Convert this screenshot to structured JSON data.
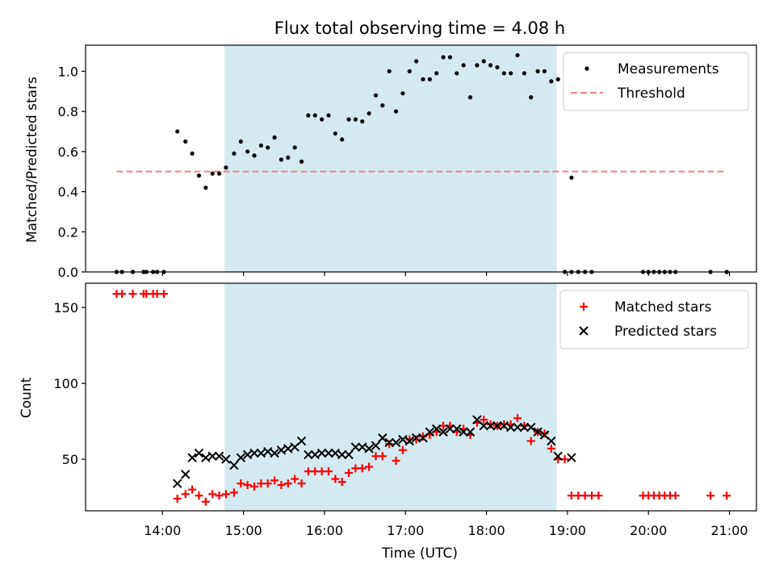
{
  "chart_data": [
    {
      "type": "scatter",
      "title": "Flux total observing time = 4.08 h",
      "xlabel": "",
      "ylabel": "Matched/Predicted stars",
      "xlim": [
        "13:03",
        "21:20"
      ],
      "ylim": [
        0,
        1.13
      ],
      "yticks": [
        0.0,
        0.2,
        0.4,
        0.6,
        0.8,
        1.0
      ],
      "ytick_labels": [
        "0.0",
        "0.2",
        "0.4",
        "0.6",
        "0.8",
        "1.0"
      ],
      "xticks": [
        "14:00",
        "15:00",
        "16:00",
        "17:00",
        "18:00",
        "19:00",
        "20:00",
        "21:00"
      ],
      "shaded_interval": {
        "start": "14:46",
        "end": "18:52",
        "color": "#d3eaf0"
      },
      "legend_position": "upper right",
      "threshold": {
        "name": "Threshold",
        "value": 0.5,
        "x_start": "13:26",
        "x_end": "20:58",
        "color": "#f08080",
        "style": "dashed"
      },
      "series": [
        {
          "name": "Measurements",
          "color": "#000000",
          "marker": "dot",
          "points": [
            [
              "13:26",
              0
            ],
            [
              "13:30",
              0
            ],
            [
              "13:38",
              0
            ],
            [
              "13:46",
              0
            ],
            [
              "13:48",
              0
            ],
            [
              "13:53",
              0
            ],
            [
              "13:56",
              0
            ],
            [
              "14:01",
              0
            ],
            [
              "14:11",
              0.7
            ],
            [
              "14:17",
              0.65
            ],
            [
              "14:22",
              0.59
            ],
            [
              "14:27",
              0.48
            ],
            [
              "14:32",
              0.42
            ],
            [
              "14:37",
              0.49
            ],
            [
              "14:42",
              0.49
            ],
            [
              "14:47",
              0.52
            ],
            [
              "14:53",
              0.59
            ],
            [
              "14:58",
              0.65
            ],
            [
              "15:03",
              0.6
            ],
            [
              "15:08",
              0.58
            ],
            [
              "15:13",
              0.63
            ],
            [
              "15:18",
              0.62
            ],
            [
              "15:23",
              0.67
            ],
            [
              "15:28",
              0.56
            ],
            [
              "15:33",
              0.57
            ],
            [
              "15:38",
              0.62
            ],
            [
              "15:43",
              0.55
            ],
            [
              "15:48",
              0.78
            ],
            [
              "15:53",
              0.78
            ],
            [
              "15:58",
              0.76
            ],
            [
              "16:03",
              0.78
            ],
            [
              "16:08",
              0.69
            ],
            [
              "16:13",
              0.66
            ],
            [
              "16:18",
              0.76
            ],
            [
              "16:23",
              0.76
            ],
            [
              "16:28",
              0.75
            ],
            [
              "16:33",
              0.79
            ],
            [
              "16:38",
              0.88
            ],
            [
              "16:43",
              0.83
            ],
            [
              "16:48",
              1.0
            ],
            [
              "16:53",
              0.8
            ],
            [
              "16:58",
              0.89
            ],
            [
              "17:03",
              1.0
            ],
            [
              "17:08",
              1.05
            ],
            [
              "17:13",
              0.96
            ],
            [
              "17:18",
              0.96
            ],
            [
              "17:23",
              0.99
            ],
            [
              "17:28",
              1.07
            ],
            [
              "17:33",
              1.07
            ],
            [
              "17:38",
              0.99
            ],
            [
              "17:43",
              1.03
            ],
            [
              "17:48",
              0.87
            ],
            [
              "17:53",
              1.03
            ],
            [
              "17:58",
              1.05
            ],
            [
              "18:03",
              1.03
            ],
            [
              "18:08",
              1.02
            ],
            [
              "18:13",
              0.99
            ],
            [
              "18:18",
              0.99
            ],
            [
              "18:23",
              1.08
            ],
            [
              "18:28",
              0.99
            ],
            [
              "18:33",
              0.87
            ],
            [
              "18:38",
              1.0
            ],
            [
              "18:43",
              1.0
            ],
            [
              "18:48",
              0.95
            ],
            [
              "18:53",
              0.96
            ],
            [
              "19:03",
              0.47
            ],
            [
              "18:58",
              0
            ],
            [
              "19:03",
              0
            ],
            [
              "19:08",
              0
            ],
            [
              "19:13",
              0
            ],
            [
              "19:18",
              0
            ],
            [
              "19:56",
              0
            ],
            [
              "20:00",
              0
            ],
            [
              "20:04",
              0
            ],
            [
              "20:08",
              0
            ],
            [
              "20:12",
              0
            ],
            [
              "20:16",
              0
            ],
            [
              "20:20",
              0
            ],
            [
              "20:46",
              0
            ],
            [
              "20:58",
              0
            ]
          ]
        }
      ]
    },
    {
      "type": "scatter",
      "title": "",
      "xlabel": "Time (UTC)",
      "ylabel": "Count",
      "xlim": [
        "13:03",
        "21:20"
      ],
      "ylim": [
        16,
        166
      ],
      "yticks": [
        50,
        100,
        150
      ],
      "ytick_labels": [
        "50",
        "100",
        "150"
      ],
      "xticks": [
        "14:00",
        "15:00",
        "16:00",
        "17:00",
        "18:00",
        "19:00",
        "20:00",
        "21:00"
      ],
      "xtick_labels": [
        "14:00",
        "15:00",
        "16:00",
        "17:00",
        "18:00",
        "19:00",
        "20:00",
        "21:00"
      ],
      "shaded_interval": {
        "start": "14:46",
        "end": "18:52",
        "color": "#d3eaf0"
      },
      "legend_position": "upper right",
      "series": [
        {
          "name": "Matched stars",
          "color": "#ff0000",
          "marker": "plus",
          "points": [
            [
              "13:26",
              159
            ],
            [
              "13:30",
              159
            ],
            [
              "13:38",
              159
            ],
            [
              "13:46",
              159
            ],
            [
              "13:48",
              159
            ],
            [
              "13:53",
              159
            ],
            [
              "13:56",
              159
            ],
            [
              "14:01",
              159
            ],
            [
              "14:11",
              24
            ],
            [
              "14:17",
              27
            ],
            [
              "14:22",
              30
            ],
            [
              "14:27",
              26
            ],
            [
              "14:32",
              22
            ],
            [
              "14:37",
              27
            ],
            [
              "14:42",
              26
            ],
            [
              "14:47",
              27
            ],
            [
              "14:53",
              28
            ],
            [
              "14:58",
              34
            ],
            [
              "15:03",
              33
            ],
            [
              "15:08",
              32
            ],
            [
              "15:13",
              34
            ],
            [
              "15:18",
              34
            ],
            [
              "15:23",
              36
            ],
            [
              "15:28",
              33
            ],
            [
              "15:33",
              34
            ],
            [
              "15:38",
              37
            ],
            [
              "15:43",
              34
            ],
            [
              "15:48",
              42
            ],
            [
              "15:53",
              42
            ],
            [
              "15:58",
              42
            ],
            [
              "16:03",
              42
            ],
            [
              "16:08",
              37
            ],
            [
              "16:13",
              35
            ],
            [
              "16:18",
              41
            ],
            [
              "16:23",
              44
            ],
            [
              "16:28",
              44
            ],
            [
              "16:33",
              45
            ],
            [
              "16:38",
              52
            ],
            [
              "16:43",
              52
            ],
            [
              "16:48",
              60
            ],
            [
              "16:53",
              49
            ],
            [
              "16:58",
              56
            ],
            [
              "17:03",
              63
            ],
            [
              "17:08",
              63
            ],
            [
              "17:13",
              65
            ],
            [
              "17:18",
              66
            ],
            [
              "17:23",
              68
            ],
            [
              "17:28",
              72
            ],
            [
              "17:33",
              72
            ],
            [
              "17:38",
              68
            ],
            [
              "17:43",
              70
            ],
            [
              "17:48",
              66
            ],
            [
              "17:53",
              74
            ],
            [
              "17:58",
              76
            ],
            [
              "18:03",
              73
            ],
            [
              "18:08",
              72
            ],
            [
              "18:13",
              73
            ],
            [
              "18:18",
              73
            ],
            [
              "18:23",
              77
            ],
            [
              "18:28",
              72
            ],
            [
              "18:33",
              62
            ],
            [
              "18:38",
              68
            ],
            [
              "18:43",
              67
            ],
            [
              "18:48",
              57
            ],
            [
              "18:53",
              50
            ],
            [
              "18:58",
              50
            ],
            [
              "19:03",
              26
            ],
            [
              "19:08",
              26
            ],
            [
              "19:13",
              26
            ],
            [
              "19:18",
              26
            ],
            [
              "19:23",
              26
            ],
            [
              "19:56",
              26
            ],
            [
              "20:00",
              26
            ],
            [
              "20:04",
              26
            ],
            [
              "20:08",
              26
            ],
            [
              "20:12",
              26
            ],
            [
              "20:16",
              26
            ],
            [
              "20:20",
              26
            ],
            [
              "20:46",
              26
            ],
            [
              "20:58",
              26
            ]
          ]
        },
        {
          "name": "Predicted stars",
          "color": "#000000",
          "marker": "x",
          "points": [
            [
              "14:11",
              34
            ],
            [
              "14:17",
              40
            ],
            [
              "14:22",
              51
            ],
            [
              "14:27",
              54
            ],
            [
              "14:32",
              51
            ],
            [
              "14:37",
              52
            ],
            [
              "14:42",
              52
            ],
            [
              "14:47",
              50
            ],
            [
              "14:53",
              46
            ],
            [
              "14:58",
              51
            ],
            [
              "15:03",
              53
            ],
            [
              "15:08",
              54
            ],
            [
              "15:13",
              54
            ],
            [
              "15:18",
              55
            ],
            [
              "15:23",
              54
            ],
            [
              "15:28",
              56
            ],
            [
              "15:33",
              57
            ],
            [
              "15:38",
              58
            ],
            [
              "15:43",
              62
            ],
            [
              "15:48",
              53
            ],
            [
              "15:53",
              53
            ],
            [
              "15:58",
              54
            ],
            [
              "16:03",
              54
            ],
            [
              "16:08",
              54
            ],
            [
              "16:13",
              53
            ],
            [
              "16:18",
              53
            ],
            [
              "16:23",
              58
            ],
            [
              "16:28",
              58
            ],
            [
              "16:33",
              57
            ],
            [
              "16:38",
              59
            ],
            [
              "16:43",
              64
            ],
            [
              "16:48",
              61
            ],
            [
              "16:53",
              61
            ],
            [
              "16:58",
              63
            ],
            [
              "17:03",
              62
            ],
            [
              "17:08",
              64
            ],
            [
              "17:13",
              64
            ],
            [
              "17:18",
              68
            ],
            [
              "17:23",
              70
            ],
            [
              "17:28",
              68
            ],
            [
              "17:33",
              70
            ],
            [
              "17:38",
              70
            ],
            [
              "17:43",
              68
            ],
            [
              "17:48",
              68
            ],
            [
              "17:53",
              76
            ],
            [
              "17:58",
              72
            ],
            [
              "18:03",
              72
            ],
            [
              "18:08",
              72
            ],
            [
              "18:13",
              72
            ],
            [
              "18:18",
              71
            ],
            [
              "18:23",
              71
            ],
            [
              "18:28",
              71
            ],
            [
              "18:33",
              71
            ],
            [
              "18:38",
              68
            ],
            [
              "18:43",
              66
            ],
            [
              "18:48",
              62
            ],
            [
              "18:53",
              52
            ],
            [
              "19:03",
              51
            ]
          ]
        }
      ]
    }
  ]
}
